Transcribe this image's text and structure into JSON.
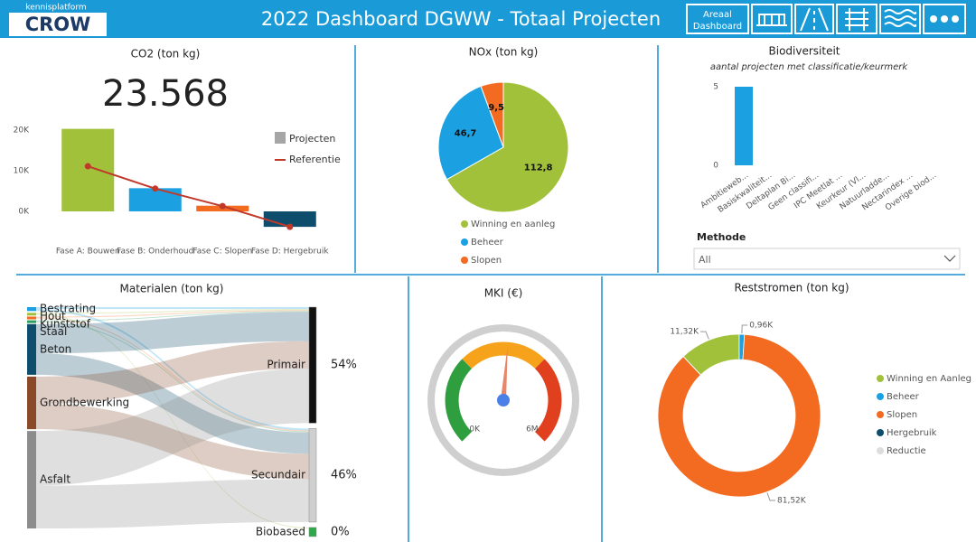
{
  "header": {
    "logo_top": "kennisplatform",
    "logo": "CROW",
    "title": "2022 Dashboard DGWW - Totaal Projecten",
    "nav_label": [
      "Areaal",
      "Dashboard"
    ]
  },
  "chart_data": [
    {
      "type": "combo",
      "title": "CO2 (ton kg)",
      "kpi": "23.568",
      "categories": [
        "Fase A: Bouwen",
        "Fase B: Onderhoud",
        "Fase C: Slopen",
        "Fase D: Hergebruik"
      ],
      "series": [
        {
          "name": "Projecten",
          "kind": "bar",
          "color": "#a6a6a6",
          "bar_colors": [
            "#a1c13b",
            "#1ba1e2",
            "#f26b21",
            "#0e4d6b"
          ],
          "values": [
            20300,
            5700,
            1400,
            -3800
          ]
        },
        {
          "name": "Referentie",
          "kind": "line",
          "color": "#c0392b",
          "values": [
            11100,
            5600,
            1300,
            -3800
          ]
        }
      ],
      "ylim": [
        -5000,
        22000
      ],
      "yticks": [
        {
          "value": 0,
          "label": "0K"
        },
        {
          "value": 10000,
          "label": "10K"
        },
        {
          "value": 20000,
          "label": "20K"
        }
      ],
      "grid": false
    },
    {
      "type": "pie",
      "title": "NOx (ton kg)",
      "categories": [
        "Winning en aanleg",
        "Beheer",
        "Slopen"
      ],
      "values": [
        112.8,
        46.7,
        9.5
      ],
      "value_labels": [
        "112,8",
        "46,7",
        "9,5"
      ],
      "colors": [
        "#a1c13b",
        "#1ba1e2",
        "#f26b21"
      ],
      "legend": "bottom"
    },
    {
      "type": "bar",
      "title": "Biodiversiteit",
      "subtitle": "aantal projecten met classificatie/keurmerk",
      "categories": [
        "Ambitieweb...",
        "Basiskwaliteit...",
        "Deltaplan Bi...",
        "Geen classifi...",
        "IPC Meetlat ...",
        "Keurkeur (Vl...",
        "Natuurladde...",
        "Nectarindex ...",
        "Overige biod..."
      ],
      "values": [
        5,
        0,
        0,
        0,
        0,
        0,
        0,
        0,
        0
      ],
      "color": "#1ba1e2",
      "ylim": [
        0,
        5
      ],
      "yticks": [
        0,
        5
      ],
      "grid": false,
      "filter": {
        "label": "Methode",
        "value": "All"
      }
    },
    {
      "type": "sankey",
      "title": "Materialen (ton kg)",
      "sources": [
        "Bestrating",
        "Hout",
        "Kunststof",
        "Staal",
        "Beton",
        "Grondbewerking",
        "Asfalt"
      ],
      "source_colors": [
        "#1ba1e2",
        "#a1c13b",
        "#f26b21",
        "#2e9e5e",
        "#0e4d6b",
        "#8a4a2a",
        "#8c8c8c"
      ],
      "targets": [
        "Primair",
        "Secundair",
        "Biobased"
      ],
      "target_colors": [
        "#111111",
        "#cfcfcf",
        "#2ea84a"
      ],
      "target_values": [
        54,
        46,
        0
      ],
      "target_value_labels": [
        "54%",
        "46%",
        "0%"
      ],
      "links": [
        {
          "source": "Bestrating",
          "target": "Primair",
          "value": 2
        },
        {
          "source": "Bestrating",
          "target": "Secundair",
          "value": 2
        },
        {
          "source": "Hout",
          "target": "Primair",
          "value": 1
        },
        {
          "source": "Hout",
          "target": "Biobased",
          "value": 1
        },
        {
          "source": "Kunststof",
          "target": "Primair",
          "value": 1
        },
        {
          "source": "Kunststof",
          "target": "Secundair",
          "value": 1
        },
        {
          "source": "Staal",
          "target": "Primair",
          "value": 1
        },
        {
          "source": "Staal",
          "target": "Secundair",
          "value": 1
        },
        {
          "source": "Beton",
          "target": "Primair",
          "value": 30
        },
        {
          "source": "Beton",
          "target": "Secundair",
          "value": 22
        },
        {
          "source": "Grondbewerking",
          "target": "Primair",
          "value": 28
        },
        {
          "source": "Grondbewerking",
          "target": "Secundair",
          "value": 26
        },
        {
          "source": "Asfalt",
          "target": "Primair",
          "value": 56
        },
        {
          "source": "Asfalt",
          "target": "Secundair",
          "value": 44
        }
      ]
    },
    {
      "type": "gauge",
      "title": "MKI (€)",
      "value": 3100000,
      "needle_color": "#e8866a",
      "ylim": [
        0,
        6000000
      ],
      "yticks": [
        {
          "value": 0,
          "label": "0K"
        },
        {
          "value": 6000000,
          "label": "6M"
        }
      ],
      "bands": [
        {
          "from": 0,
          "to": 2000000,
          "color": "#2e9e3e"
        },
        {
          "from": 2000000,
          "to": 4000000,
          "color": "#f7a21b"
        },
        {
          "from": 4000000,
          "to": 6000000,
          "color": "#e0401e"
        }
      ]
    },
    {
      "type": "donut",
      "title": "Reststromen (ton kg)",
      "categories": [
        "Winning en Aanleg",
        "Beheer",
        "Slopen",
        "Hergebruik",
        "Reductie"
      ],
      "values": [
        11320,
        960,
        81520,
        0,
        0
      ],
      "value_labels": [
        "11,32K",
        "0,96K",
        "81,52K",
        null,
        null
      ],
      "colors": [
        "#a1c13b",
        "#1ba1e2",
        "#f26b21",
        "#0e4d6b",
        "#dddddd"
      ],
      "legend": "right"
    }
  ]
}
